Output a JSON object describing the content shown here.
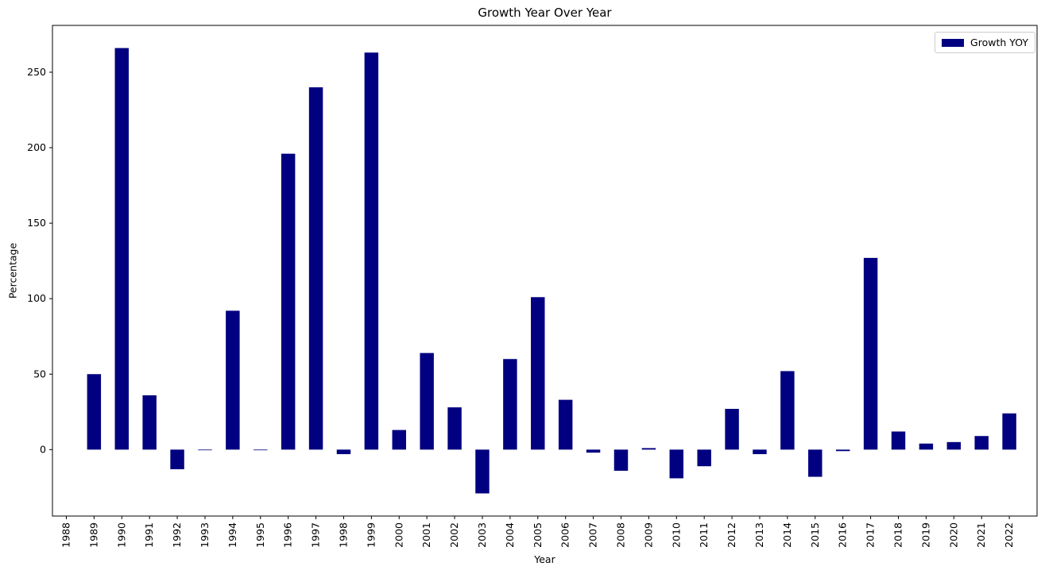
{
  "chart_data": {
    "type": "bar",
    "title": "Growth Year Over Year",
    "xlabel": "Year",
    "ylabel": "Percentage",
    "ylim": [
      -44,
      281
    ],
    "yticks": [
      0,
      50,
      100,
      150,
      200,
      250
    ],
    "categories": [
      "1988",
      "1989",
      "1990",
      "1991",
      "1992",
      "1993",
      "1994",
      "1995",
      "1996",
      "1997",
      "1998",
      "1999",
      "2000",
      "2001",
      "2002",
      "2003",
      "2004",
      "2005",
      "2006",
      "2007",
      "2008",
      "2009",
      "2010",
      "2011",
      "2012",
      "2013",
      "2014",
      "2015",
      "2016",
      "2017",
      "2018",
      "2019",
      "2020",
      "2021",
      "2022"
    ],
    "series": [
      {
        "name": "Growth YOY",
        "color": "#000080",
        "values": [
          null,
          50,
          266,
          36,
          -13,
          0,
          92,
          0,
          196,
          240,
          -3,
          263,
          13,
          64,
          28,
          -29,
          60,
          101,
          33,
          -2,
          -14,
          1,
          -19,
          -11,
          27,
          -3,
          52,
          -18,
          -1,
          127,
          12,
          4,
          5,
          9,
          24
        ]
      }
    ],
    "legend_position": "top-right",
    "grid": false
  }
}
